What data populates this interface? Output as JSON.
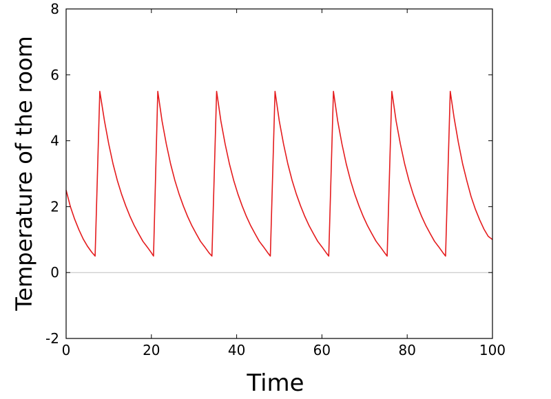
{
  "chart_data": {
    "type": "line",
    "title": "",
    "xlabel": "Time",
    "ylabel": "Temperature of the room",
    "xlim": [
      0,
      100
    ],
    "ylim": [
      -2,
      8
    ],
    "x_ticks": [
      0,
      20,
      40,
      60,
      80,
      100
    ],
    "y_ticks": [
      -2,
      0,
      2,
      4,
      6,
      8
    ],
    "x_tick_labels": [
      "0",
      "20",
      "40",
      "60",
      "80",
      "100"
    ],
    "y_tick_labels": [
      "-2",
      "0",
      "2",
      "4",
      "6",
      "8"
    ],
    "reference_line_y": 0,
    "grid": false,
    "series": [
      {
        "color": "#e41a1c",
        "x": [
          0,
          1,
          2,
          3,
          4,
          5,
          6,
          6.8,
          7.9,
          9,
          10,
          11,
          12,
          13,
          14,
          15,
          16,
          17,
          18,
          19,
          20,
          20.5,
          21.5,
          22.5,
          23.5,
          24.5,
          25.5,
          26.5,
          27.5,
          28.5,
          29.5,
          30.5,
          31.5,
          32.5,
          33.5,
          34.2,
          35.3,
          36.3,
          37.3,
          38.3,
          39.3,
          40.3,
          41.3,
          42.3,
          43.3,
          44.3,
          45.3,
          46.3,
          47.3,
          47.9,
          49,
          50,
          51,
          52,
          53,
          54,
          55,
          56,
          57,
          58,
          59,
          60,
          61,
          61.6,
          62.7,
          63.7,
          64.7,
          65.7,
          66.7,
          67.7,
          68.7,
          69.7,
          70.7,
          71.7,
          72.7,
          73.7,
          74.7,
          75.3,
          76.4,
          77.4,
          78.4,
          79.4,
          80.4,
          81.4,
          82.4,
          83.4,
          84.4,
          85.4,
          86.4,
          87.4,
          88.4,
          89,
          90.1,
          91,
          92,
          93,
          94,
          95,
          96,
          97,
          98,
          99,
          100
        ],
        "y": [
          2.5,
          2.0,
          1.62,
          1.3,
          1.02,
          0.8,
          0.62,
          0.5,
          5.5,
          4.6,
          3.9,
          3.3,
          2.8,
          2.38,
          2.02,
          1.7,
          1.42,
          1.18,
          0.95,
          0.78,
          0.6,
          0.5,
          5.5,
          4.6,
          3.9,
          3.3,
          2.8,
          2.38,
          2.02,
          1.7,
          1.42,
          1.18,
          0.95,
          0.78,
          0.6,
          0.5,
          5.5,
          4.6,
          3.9,
          3.3,
          2.8,
          2.38,
          2.02,
          1.7,
          1.42,
          1.18,
          0.95,
          0.78,
          0.6,
          0.5,
          5.5,
          4.6,
          3.9,
          3.3,
          2.8,
          2.38,
          2.02,
          1.7,
          1.42,
          1.18,
          0.95,
          0.78,
          0.6,
          0.5,
          5.5,
          4.6,
          3.9,
          3.3,
          2.8,
          2.38,
          2.02,
          1.7,
          1.42,
          1.18,
          0.95,
          0.78,
          0.6,
          0.5,
          5.5,
          4.6,
          3.9,
          3.3,
          2.8,
          2.38,
          2.02,
          1.7,
          1.42,
          1.18,
          0.95,
          0.78,
          0.6,
          0.5,
          5.5,
          4.7,
          3.95,
          3.3,
          2.78,
          2.3,
          1.92,
          1.6,
          1.32,
          1.1,
          1.0
        ]
      }
    ]
  }
}
